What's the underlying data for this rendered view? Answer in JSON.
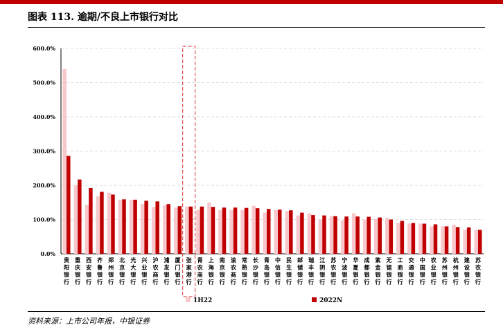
{
  "header": {
    "title": "图表 113. 逾期/不良上市银行对比",
    "accent_color": "#c00000"
  },
  "footer": {
    "source": "资料来源：上市公司年报，中银证券"
  },
  "chart_data": {
    "type": "bar",
    "categories": [
      "贵阳银行",
      "重庆银行",
      "西安银行",
      "齐鲁银行",
      "郑州银行",
      "北京银行",
      "光大银行",
      "兴业银行",
      "沪农商行",
      "浦发银行",
      "厦门银行",
      "张家港行",
      "青农商行",
      "上海银行",
      "南京银行",
      "渝农商行",
      "常熟银行",
      "长沙银行",
      "青岛银行",
      "中信银行",
      "民生银行",
      "邮储银行",
      "瑞丰银行",
      "江阴银行",
      "苏农银行",
      "宁波银行",
      "华夏银行",
      "成都银行",
      "紫金银行",
      "无锡银行",
      "工商银行",
      "交通银行",
      "中国银行",
      "农业银行",
      "苏州银行",
      "杭州银行",
      "建设银行",
      "苏农银行"
    ],
    "series": [
      {
        "name": "1H22",
        "color": "#f8c8cc",
        "values": [
          540,
          200,
          143,
          168,
          178,
          158,
          158,
          145,
          137,
          142,
          135,
          138,
          128,
          150,
          128,
          128,
          128,
          140,
          120,
          128,
          125,
          112,
          118,
          100,
          110,
          98,
          118,
          100,
          102,
          105,
          90,
          88,
          88,
          80,
          80,
          85,
          70,
          70
        ]
      },
      {
        "name": "2022N",
        "color": "#c00000",
        "values": [
          286,
          217,
          192,
          181,
          173,
          159,
          158,
          155,
          153,
          145,
          139,
          138,
          138,
          137,
          135,
          135,
          134,
          133,
          131,
          129,
          127,
          120,
          113,
          112,
          110,
          109,
          109,
          108,
          106,
          100,
          96,
          90,
          88,
          86,
          80,
          78,
          77,
          70
        ]
      }
    ],
    "y_ticks": [
      "0.0%",
      "100.0%",
      "200.0%",
      "300.0%",
      "400.0%",
      "500.0%",
      "600.0%"
    ],
    "ylim": [
      0,
      600
    ],
    "grid": true,
    "legend_position": "bottom",
    "highlight_category": "张家港行"
  }
}
